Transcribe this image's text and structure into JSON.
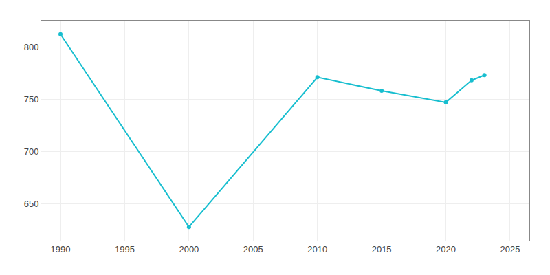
{
  "chart_data": {
    "type": "line",
    "x": [
      1990,
      2000,
      2010,
      2015,
      2020,
      2022,
      2023
    ],
    "values": [
      812,
      628,
      771,
      758,
      747,
      768,
      773
    ],
    "color": "#17becf",
    "marker": "circle",
    "xlim": [
      1988.5,
      2026.5
    ],
    "ylim": [
      615,
      825
    ],
    "xticks": [
      1990,
      1995,
      2000,
      2005,
      2010,
      2015,
      2020,
      2025
    ],
    "yticks": [
      650,
      700,
      750,
      800
    ],
    "grid": true
  }
}
